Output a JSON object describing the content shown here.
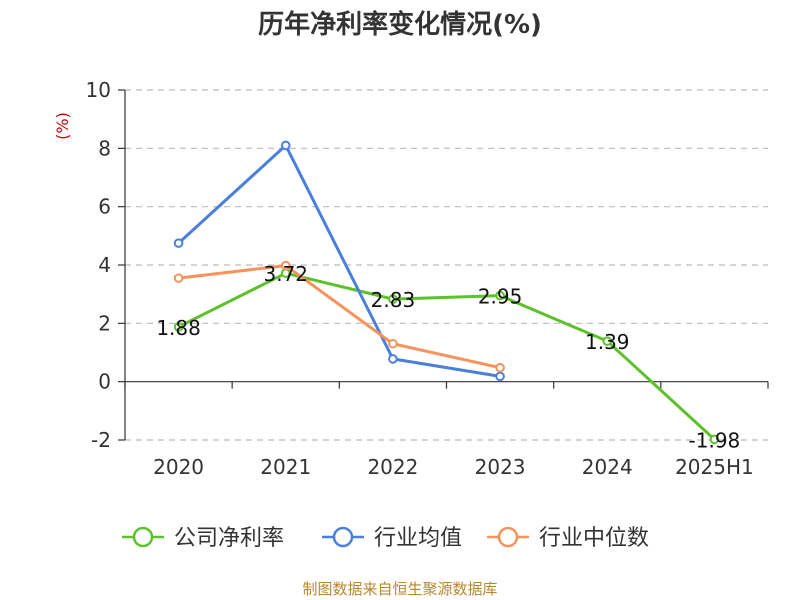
{
  "chart_data": {
    "type": "line",
    "title": "历年净利率变化情况(%)",
    "ylabel": "(%)",
    "categories": [
      "2020",
      "2021",
      "2022",
      "2023",
      "2024",
      "2025H1"
    ],
    "yticks": [
      "10",
      "8",
      "6",
      "4",
      "2",
      "0",
      "-2"
    ],
    "ylim": [
      -2,
      10
    ],
    "grid": true,
    "legend_position": "bottom",
    "series": [
      {
        "name": "公司净利率",
        "color": "#5cc12b",
        "values": [
          1.88,
          3.72,
          2.83,
          2.95,
          1.39,
          -1.98
        ],
        "labels": [
          "1.88",
          "3.72",
          "2.83",
          "2.95",
          "1.39",
          "-1.98"
        ]
      },
      {
        "name": "行业均值",
        "color": "#4a7fdc",
        "values": [
          4.75,
          8.1,
          0.78,
          0.18,
          null,
          null
        ]
      },
      {
        "name": "行业中位数",
        "color": "#f5935a",
        "values": [
          3.55,
          3.98,
          1.3,
          0.48,
          null,
          null
        ]
      }
    ]
  },
  "source": "制图数据来自恒生聚源数据库"
}
